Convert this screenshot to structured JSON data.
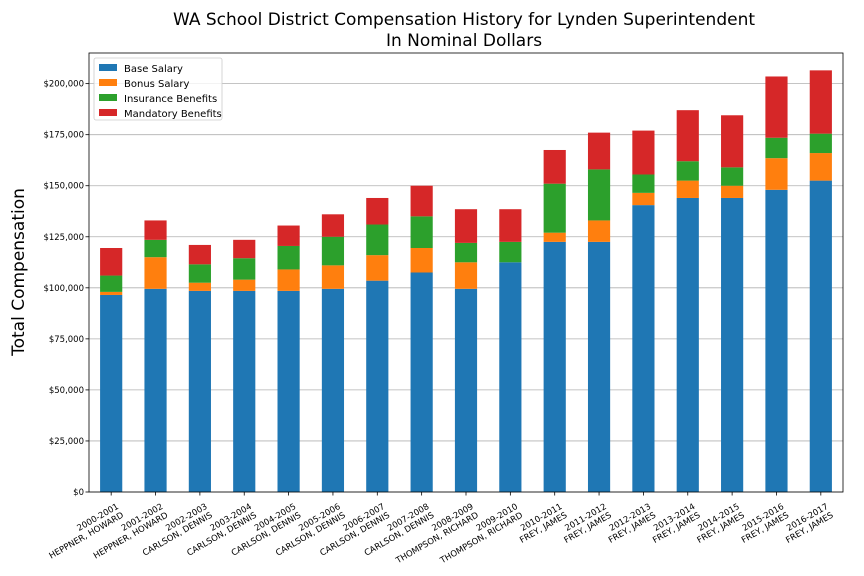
{
  "chart_data": {
    "type": "bar",
    "stacked": true,
    "title": "WA School District Compensation History for Lynden Superintendent",
    "subtitle": "In Nominal Dollars",
    "xlabel": "",
    "ylabel": "Total Compensation",
    "ylim": [
      0,
      215000
    ],
    "yticks": [
      "$0",
      "$25,000",
      "$50,000",
      "$75,000",
      "$100,000",
      "$125,000",
      "$150,000",
      "$175,000",
      "$200,000"
    ],
    "ytick_values": [
      0,
      25000,
      50000,
      75000,
      100000,
      125000,
      150000,
      175000,
      200000
    ],
    "grid": "horizontal",
    "legend_position": "top-left",
    "categories": [
      [
        "2000-2001",
        "HEPPNER, HOWARD"
      ],
      [
        "2001-2002",
        "HEPPNER, HOWARD"
      ],
      [
        "2002-2003",
        "CARLSON, DENNIS"
      ],
      [
        "2003-2004",
        "CARLSON, DENNIS"
      ],
      [
        "2004-2005",
        "CARLSON, DENNIS"
      ],
      [
        "2005-2006",
        "CARLSON, DENNIS"
      ],
      [
        "2006-2007",
        "CARLSON, DENNIS"
      ],
      [
        "2007-2008",
        "CARLSON, DENNIS"
      ],
      [
        "2008-2009",
        "THOMPSON, RICHARD"
      ],
      [
        "2009-2010",
        "THOMPSON, RICHARD"
      ],
      [
        "2010-2011",
        "FREY, JAMES"
      ],
      [
        "2011-2012",
        "FREY, JAMES"
      ],
      [
        "2012-2013",
        "FREY, JAMES"
      ],
      [
        "2013-2014",
        "FREY, JAMES"
      ],
      [
        "2014-2015",
        "FREY, JAMES"
      ],
      [
        "2015-2016",
        "FREY, JAMES"
      ],
      [
        "2016-2017",
        "FREY, JAMES"
      ]
    ],
    "series": [
      {
        "name": "Base Salary",
        "color": "#1f77b4",
        "values": [
          96500,
          99500,
          98500,
          98500,
          98500,
          99500,
          103500,
          107500,
          99500,
          112500,
          122500,
          122500,
          140500,
          144000,
          144000,
          148000,
          152500
        ]
      },
      {
        "name": "Bonus Salary",
        "color": "#ff7f0e",
        "values": [
          1500,
          15500,
          4000,
          5500,
          10500,
          11500,
          12500,
          12000,
          13000,
          0,
          4500,
          10500,
          6000,
          8500,
          6000,
          15500,
          13500
        ]
      },
      {
        "name": "Insurance Benefits",
        "color": "#2ca02c",
        "values": [
          8000,
          8500,
          9000,
          10500,
          11500,
          14000,
          15000,
          15500,
          9500,
          10000,
          24000,
          25000,
          9000,
          9500,
          9000,
          10000,
          9500
        ]
      },
      {
        "name": "Mandatory Benefits",
        "color": "#d62728",
        "values": [
          13500,
          9500,
          9500,
          9000,
          10000,
          11000,
          13000,
          15000,
          16500,
          16000,
          16500,
          18000,
          21500,
          25000,
          25500,
          30000,
          31000
        ]
      }
    ]
  }
}
